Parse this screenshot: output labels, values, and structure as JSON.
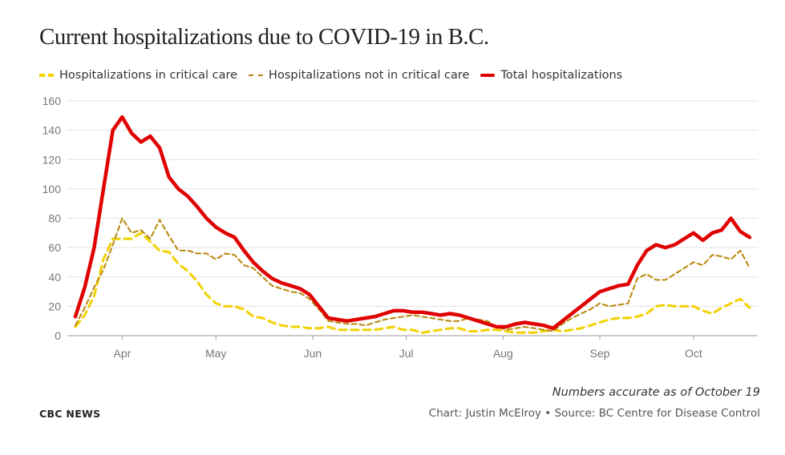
{
  "header": {
    "title": "Current hospitalizations due to COVID-19 in B.C."
  },
  "legend": [
    {
      "label": "Hospitalizations in critical care",
      "style": "critical"
    },
    {
      "label": "Hospitalizations not in critical care",
      "style": "noncritical"
    },
    {
      "label": "Total hospitalizations",
      "style": "total"
    }
  ],
  "footer": {
    "note": "Numbers accurate as of October 19",
    "brand": "CBC NEWS",
    "credit": "Chart: Justin McElroy • Source: BC Centre for Disease Control"
  },
  "colors": {
    "critical": "#f2d100",
    "noncritical": "#b8860b",
    "total": "#e00000",
    "grid": "#e3e3e3",
    "tick": "#777777"
  },
  "chart_data": {
    "type": "line",
    "title": "Current hospitalizations due to COVID-19 in B.C.",
    "xlabel": "",
    "ylabel": "",
    "ylim": [
      0,
      160
    ],
    "y_ticks": [
      0,
      20,
      40,
      60,
      80,
      100,
      120,
      140,
      160
    ],
    "x_ticks": [
      "2020-04-01",
      "2020-05-01",
      "2020-06-01",
      "2020-07-01",
      "2020-08-01",
      "2020-09-01",
      "2020-10-01"
    ],
    "x_tick_labels": [
      "Apr",
      "May",
      "Jun",
      "Jul",
      "Aug",
      "Sep",
      "Oct"
    ],
    "xlim": [
      "2020-03-17",
      "2020-10-19"
    ],
    "grid": true,
    "legend_position": "top-left",
    "x": [
      "2020-03-17",
      "2020-03-20",
      "2020-03-23",
      "2020-03-26",
      "2020-03-29",
      "2020-04-01",
      "2020-04-04",
      "2020-04-07",
      "2020-04-10",
      "2020-04-13",
      "2020-04-16",
      "2020-04-19",
      "2020-04-22",
      "2020-04-25",
      "2020-04-28",
      "2020-05-01",
      "2020-05-04",
      "2020-05-07",
      "2020-05-10",
      "2020-05-13",
      "2020-05-16",
      "2020-05-19",
      "2020-05-22",
      "2020-05-25",
      "2020-05-28",
      "2020-05-31",
      "2020-06-03",
      "2020-06-06",
      "2020-06-09",
      "2020-06-12",
      "2020-06-15",
      "2020-06-18",
      "2020-06-21",
      "2020-06-24",
      "2020-06-27",
      "2020-06-30",
      "2020-07-03",
      "2020-07-06",
      "2020-07-09",
      "2020-07-12",
      "2020-07-15",
      "2020-07-18",
      "2020-07-21",
      "2020-07-24",
      "2020-07-27",
      "2020-07-30",
      "2020-08-02",
      "2020-08-05",
      "2020-08-08",
      "2020-08-11",
      "2020-08-14",
      "2020-08-17",
      "2020-08-20",
      "2020-08-23",
      "2020-08-26",
      "2020-08-29",
      "2020-09-01",
      "2020-09-04",
      "2020-09-07",
      "2020-09-10",
      "2020-09-13",
      "2020-09-16",
      "2020-09-19",
      "2020-09-22",
      "2020-09-25",
      "2020-09-28",
      "2020-10-01",
      "2020-10-04",
      "2020-10-07",
      "2020-10-10",
      "2020-10-13",
      "2020-10-16",
      "2020-10-19"
    ],
    "series": [
      {
        "name": "Hospitalizations in critical care",
        "style": "critical",
        "values": [
          6,
          14,
          27,
          52,
          66,
          66,
          66,
          70,
          64,
          58,
          57,
          49,
          44,
          37,
          28,
          22,
          20,
          20,
          18,
          13,
          12,
          9,
          7,
          6,
          6,
          5,
          5,
          6,
          4,
          4,
          4,
          4,
          4,
          5,
          6,
          4,
          4,
          2,
          3,
          4,
          5,
          5,
          3,
          3,
          4,
          4,
          3,
          2,
          2,
          2,
          3,
          4,
          3,
          4,
          5,
          7,
          9,
          11,
          12,
          12,
          13,
          15,
          20,
          21,
          20,
          20,
          20,
          17,
          15,
          19,
          22,
          25,
          19
        ]
      },
      {
        "name": "Hospitalizations not in critical care",
        "style": "noncritical",
        "values": [
          7,
          19,
          33,
          45,
          62,
          80,
          70,
          72,
          66,
          79,
          68,
          58,
          58,
          56,
          56,
          52,
          56,
          55,
          48,
          46,
          40,
          34,
          32,
          30,
          29,
          25,
          18,
          10,
          9,
          8,
          8,
          7,
          9,
          11,
          12,
          13,
          14,
          13,
          12,
          11,
          10,
          10,
          12,
          11,
          10,
          6,
          4,
          5,
          6,
          5,
          4,
          3,
          8,
          12,
          15,
          18,
          22,
          20,
          21,
          22,
          39,
          42,
          38,
          38,
          42,
          46,
          50,
          48,
          55,
          54,
          52,
          58,
          46
        ]
      },
      {
        "name": "Total hospitalizations",
        "style": "total",
        "values": [
          13,
          33,
          60,
          100,
          140,
          149,
          138,
          132,
          136,
          128,
          108,
          100,
          95,
          88,
          80,
          74,
          70,
          67,
          58,
          50,
          44,
          39,
          36,
          34,
          32,
          28,
          20,
          12,
          11,
          10,
          11,
          12,
          13,
          15,
          17,
          17,
          16,
          16,
          15,
          14,
          15,
          14,
          12,
          10,
          8,
          6,
          6,
          8,
          9,
          8,
          7,
          5,
          10,
          15,
          20,
          25,
          30,
          32,
          34,
          35,
          48,
          58,
          62,
          60,
          62,
          66,
          70,
          65,
          70,
          72,
          80,
          71,
          67
        ]
      }
    ]
  }
}
